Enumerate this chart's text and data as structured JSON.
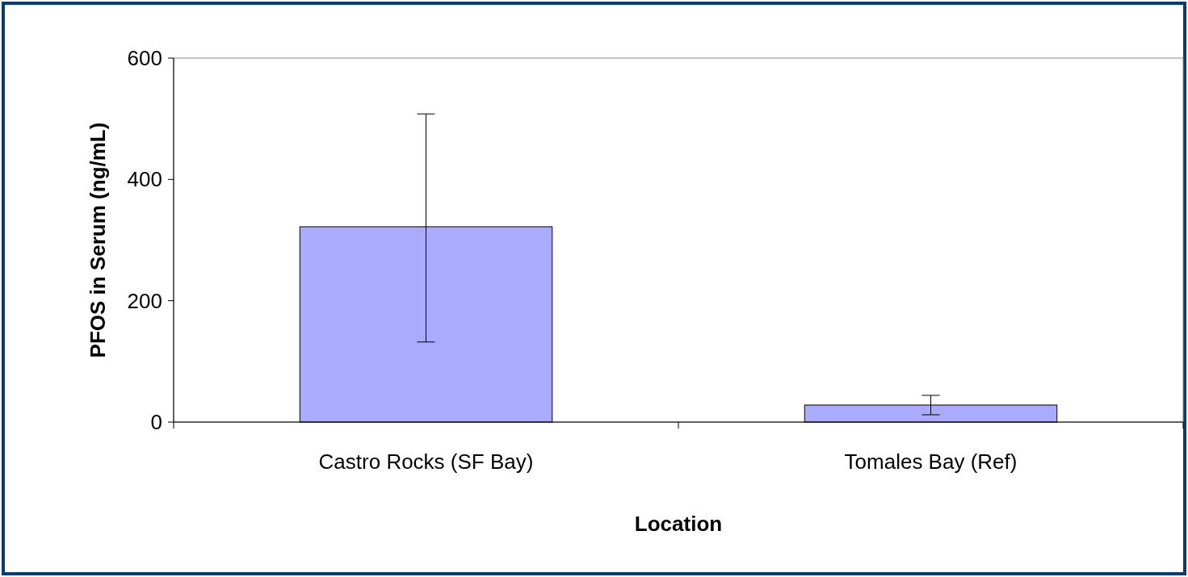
{
  "chart_data": {
    "type": "bar",
    "xlabel": "Location",
    "ylabel": "PFOS in Serum (ng/mL)",
    "categories": [
      "Castro Rocks (SF Bay)",
      "Tomales Bay (Ref)"
    ],
    "values": [
      322,
      28
    ],
    "errors": [
      [
        132,
        508
      ],
      [
        12,
        44
      ]
    ],
    "color": "#aaaaff",
    "ylim": [
      0,
      600
    ],
    "yticks": [
      0,
      200,
      400,
      600
    ]
  }
}
